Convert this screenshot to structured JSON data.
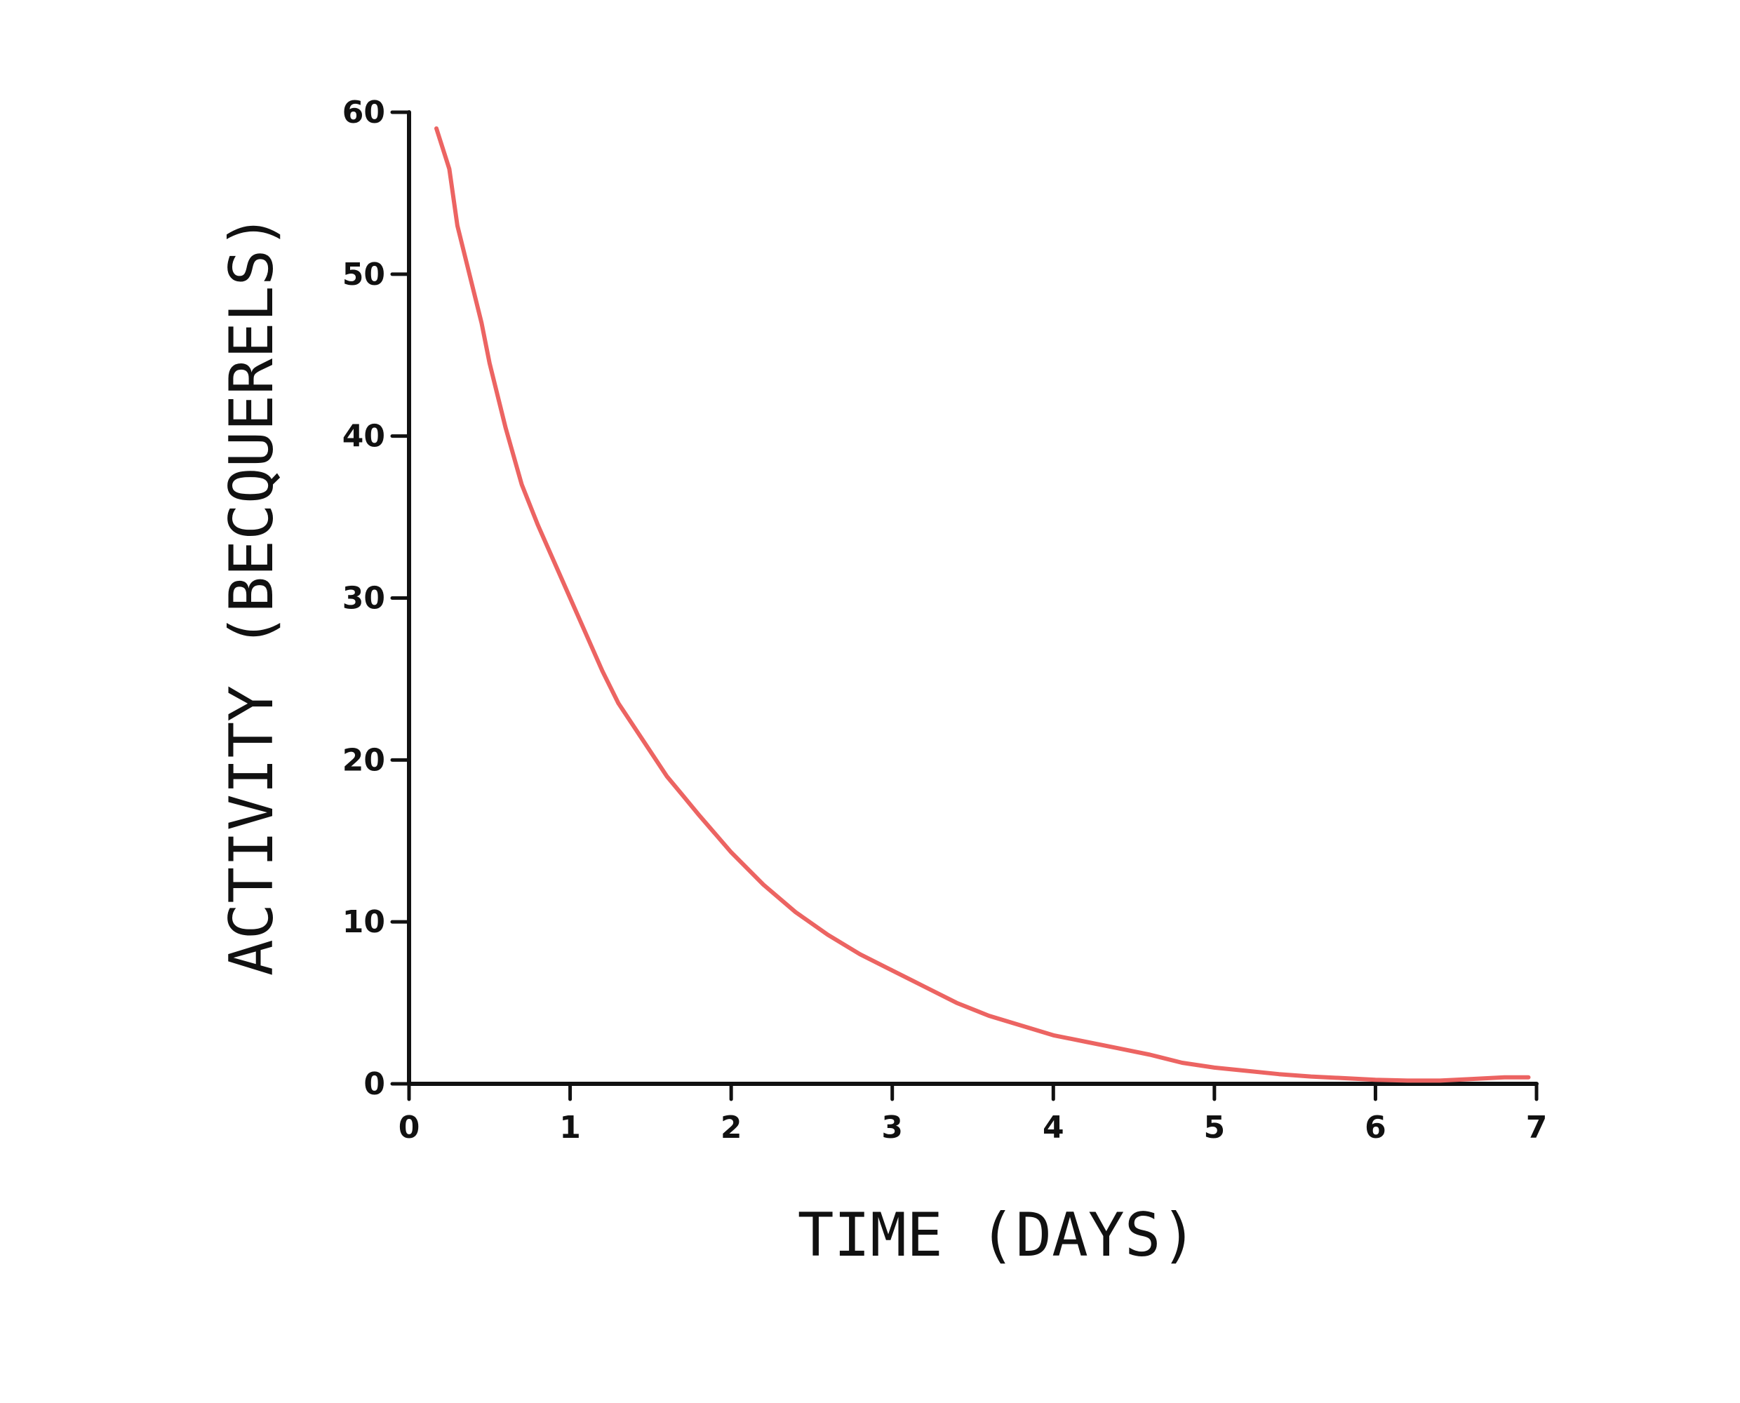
{
  "chart_data": {
    "type": "line",
    "title": "",
    "xlabel": "TIME (DAYS)",
    "ylabel": "ACTIVITY (BECQUERELS)",
    "xlim": [
      0,
      7
    ],
    "ylim": [
      0,
      60
    ],
    "x_ticks": [
      0,
      1,
      2,
      3,
      4,
      5,
      6,
      7
    ],
    "y_ticks": [
      0,
      10,
      20,
      30,
      40,
      50,
      60
    ],
    "grid": false,
    "legend": "none",
    "colors": {
      "series": "#ec6462",
      "axis": "#111111"
    },
    "series": [
      {
        "x": [
          0.17,
          0.25,
          0.3,
          0.4,
          0.45,
          0.5,
          0.6,
          0.7,
          0.8,
          1.0,
          1.2,
          1.3,
          1.5,
          1.6,
          1.7,
          1.8,
          2.0,
          2.2,
          2.4,
          2.6,
          2.8,
          3.0,
          3.2,
          3.4,
          3.6,
          3.8,
          4.0,
          4.2,
          4.4,
          4.6,
          4.8,
          5.0,
          5.2,
          5.4,
          5.6,
          5.8,
          6.0,
          6.2,
          6.4,
          6.6,
          6.8,
          6.95
        ],
        "y": [
          59.0,
          56.5,
          53.0,
          49.0,
          47.0,
          44.5,
          40.5,
          37.0,
          34.5,
          30.0,
          25.5,
          23.5,
          20.5,
          19.0,
          17.8,
          16.6,
          14.3,
          12.3,
          10.6,
          9.2,
          8.0,
          7.0,
          6.0,
          5.0,
          4.2,
          3.6,
          3.0,
          2.6,
          2.2,
          1.8,
          1.3,
          1.0,
          0.8,
          0.6,
          0.45,
          0.35,
          0.25,
          0.2,
          0.2,
          0.3,
          0.4,
          0.4
        ]
      }
    ]
  }
}
